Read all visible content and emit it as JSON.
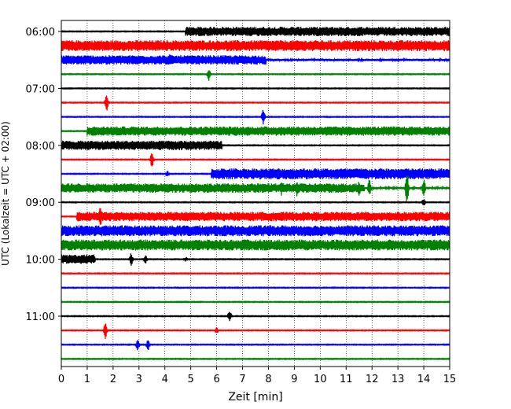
{
  "chart_data": {
    "type": "line",
    "title": "",
    "xlabel": "Zeit  [min]",
    "ylabel": "UTC (Lokalzeit = UTC + 02:00)",
    "xlim": [
      0,
      15
    ],
    "x_ticks": [
      0,
      1,
      2,
      3,
      4,
      5,
      6,
      7,
      8,
      9,
      10,
      11,
      12,
      13,
      14,
      15
    ],
    "grid": "vertical dotted",
    "y_ticks": [
      "06:00",
      "07:00",
      "08:00",
      "09:00",
      "10:00",
      "11:00"
    ],
    "trace_colors": [
      "#000000",
      "#ff0000",
      "#0000ff",
      "#008000"
    ],
    "traces": [
      {
        "start": "06:00",
        "color": "#000000",
        "base": 1,
        "segments": [
          [
            4.8,
            15,
            6
          ]
        ],
        "events": []
      },
      {
        "start": "06:15",
        "color": "#ff0000",
        "base": 1,
        "segments": [
          [
            0,
            15,
            7
          ]
        ],
        "events": []
      },
      {
        "start": "06:30",
        "color": "#0000ff",
        "base": 1,
        "segments": [
          [
            0,
            7.9,
            6
          ],
          [
            7.9,
            15,
            1.5
          ]
        ],
        "events": [
          {
            "t": 4.2,
            "a": 8
          }
        ]
      },
      {
        "start": "06:45",
        "color": "#008000",
        "base": 1,
        "segments": [],
        "events": [
          {
            "t": 5.7,
            "a": 9
          }
        ]
      },
      {
        "start": "07:00",
        "color": "#000000",
        "base": 1,
        "segments": [],
        "events": []
      },
      {
        "start": "07:15",
        "color": "#ff0000",
        "base": 1,
        "segments": [],
        "events": [
          {
            "t": 1.75,
            "a": 12
          }
        ]
      },
      {
        "start": "07:30",
        "color": "#0000ff",
        "base": 1,
        "segments": [],
        "events": [
          {
            "t": 7.8,
            "a": 10
          }
        ]
      },
      {
        "start": "07:45",
        "color": "#008000",
        "base": 1,
        "segments": [
          [
            1.0,
            6.3,
            6
          ],
          [
            6.3,
            15,
            6
          ]
        ],
        "events": []
      },
      {
        "start": "08:00",
        "color": "#000000",
        "base": 1,
        "segments": [
          [
            0,
            6.2,
            6
          ]
        ],
        "events": []
      },
      {
        "start": "08:15",
        "color": "#ff0000",
        "base": 1,
        "segments": [],
        "events": [
          {
            "t": 3.5,
            "a": 12
          }
        ]
      },
      {
        "start": "08:30",
        "color": "#0000ff",
        "base": 1,
        "segments": [
          [
            5.8,
            15,
            7
          ]
        ],
        "events": [
          {
            "t": 4.1,
            "a": 4
          }
        ]
      },
      {
        "start": "08:45",
        "color": "#008000",
        "base": 1,
        "segments": [
          [
            0,
            11.7,
            6
          ],
          [
            11.7,
            15,
            1.5
          ]
        ],
        "events": [
          {
            "t": 8.5,
            "a": 10
          },
          {
            "t": 9.1,
            "a": 11
          },
          {
            "t": 11.5,
            "a": 10
          },
          {
            "t": 11.9,
            "a": 13
          },
          {
            "t": 13.35,
            "a": 22
          },
          {
            "t": 14.0,
            "a": 14
          }
        ]
      },
      {
        "start": "09:00",
        "color": "#000000",
        "base": 1,
        "segments": [],
        "events": [
          {
            "t": 14.0,
            "a": 6
          }
        ]
      },
      {
        "start": "09:15",
        "color": "#ff0000",
        "base": 1,
        "segments": [
          [
            0.6,
            15,
            6
          ]
        ],
        "events": [
          {
            "t": 1.5,
            "a": 14
          }
        ]
      },
      {
        "start": "09:30",
        "color": "#0000ff",
        "base": 1,
        "segments": [
          [
            0,
            15,
            7
          ]
        ],
        "events": []
      },
      {
        "start": "09:45",
        "color": "#008000",
        "base": 1,
        "segments": [
          [
            0,
            15,
            7
          ]
        ],
        "events": []
      },
      {
        "start": "10:00",
        "color": "#000000",
        "base": 1,
        "segments": [
          [
            0,
            1.3,
            6
          ]
        ],
        "events": [
          {
            "t": 2.7,
            "a": 9
          },
          {
            "t": 3.25,
            "a": 6
          },
          {
            "t": 4.8,
            "a": 3
          }
        ]
      },
      {
        "start": "10:15",
        "color": "#ff0000",
        "base": 1,
        "segments": [],
        "events": []
      },
      {
        "start": "10:30",
        "color": "#0000ff",
        "base": 1,
        "segments": [],
        "events": []
      },
      {
        "start": "10:45",
        "color": "#008000",
        "base": 1,
        "segments": [],
        "events": []
      },
      {
        "start": "11:00",
        "color": "#000000",
        "base": 1,
        "segments": [],
        "events": [
          {
            "t": 6.5,
            "a": 8
          }
        ]
      },
      {
        "start": "11:15",
        "color": "#ff0000",
        "base": 1,
        "segments": [],
        "events": [
          {
            "t": 1.7,
            "a": 11
          },
          {
            "t": 6.0,
            "a": 4
          }
        ]
      },
      {
        "start": "11:30",
        "color": "#0000ff",
        "base": 1,
        "segments": [],
        "events": [
          {
            "t": 2.95,
            "a": 8
          },
          {
            "t": 3.35,
            "a": 8
          }
        ]
      },
      {
        "start": "11:45",
        "color": "#008000",
        "base": 1,
        "segments": [],
        "events": []
      }
    ]
  }
}
